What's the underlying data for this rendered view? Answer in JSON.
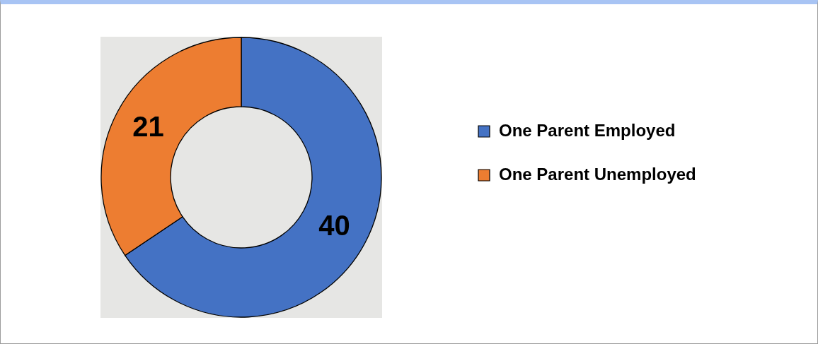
{
  "chart_data": {
    "type": "donut",
    "categories": [
      "One Parent Employed",
      "One Parent Unemployed"
    ],
    "values": [
      40,
      21
    ],
    "colors": [
      "#4472c4",
      "#ed7d31"
    ],
    "data_labels": true,
    "legend": "right"
  }
}
